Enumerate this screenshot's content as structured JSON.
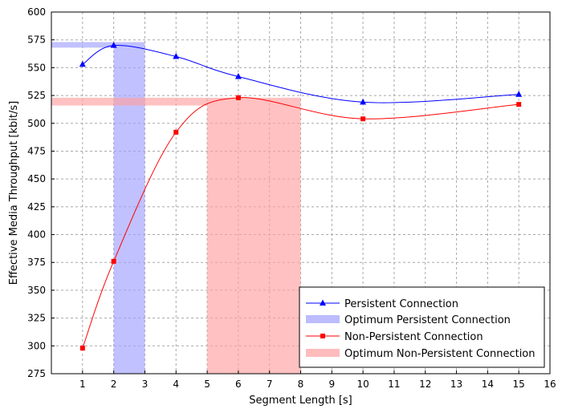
{
  "chart_data": {
    "type": "line",
    "title": "",
    "xlabel": "Segment Length [s]",
    "ylabel": "Effective Media Throughput  [kbit/s]",
    "xlim": [
      0,
      16
    ],
    "ylim": [
      275,
      600
    ],
    "xticks": [
      1,
      2,
      3,
      4,
      5,
      6,
      7,
      8,
      9,
      10,
      11,
      12,
      13,
      14,
      15,
      16
    ],
    "yticks": [
      275,
      300,
      325,
      350,
      375,
      400,
      425,
      450,
      475,
      500,
      525,
      550,
      575,
      600
    ],
    "grid": true,
    "legend_position": "bottom-right",
    "series": [
      {
        "name": "Persistent Connection",
        "color": "#0000ff",
        "marker": "triangle",
        "x": [
          1,
          2,
          4,
          6,
          10,
          15
        ],
        "y": [
          553,
          570,
          560,
          542,
          519,
          526
        ]
      },
      {
        "name": "Non-Persistent Connection",
        "color": "#ff0000",
        "marker": "square",
        "x": [
          1,
          2,
          4,
          6,
          10,
          15
        ],
        "y": [
          298,
          376,
          492,
          523,
          504,
          517
        ]
      }
    ],
    "optimum_regions": [
      {
        "name": "Optimum Persistent Connection",
        "color": "#a0a0ff",
        "x_range": [
          2,
          3
        ],
        "y_band": [
          568,
          573
        ]
      },
      {
        "name": "Optimum Non-Persistent Connection",
        "color": "#ffa0a0",
        "x_range": [
          5,
          8
        ],
        "y_band": [
          516,
          523
        ]
      }
    ]
  }
}
